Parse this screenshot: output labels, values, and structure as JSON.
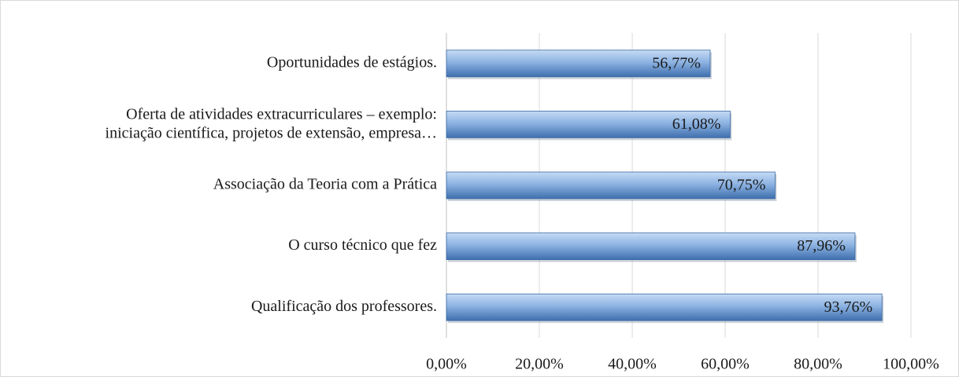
{
  "chart_data": {
    "type": "bar",
    "orientation": "horizontal",
    "categories": [
      "Oportunidades de estágios.",
      "Oferta de atividades extracurriculares – exemplo:\niniciação científica, projetos de extensão, empresa…",
      "Associação da Teoria com a Prática",
      "O curso técnico que fez",
      "Qualificação dos professores."
    ],
    "values": [
      56.77,
      61.08,
      70.75,
      87.96,
      93.76
    ],
    "value_labels": [
      "56,77%",
      "61,08%",
      "70,75%",
      "87,96%",
      "93,76%"
    ],
    "color": "#4f81bd",
    "xlim": [
      0,
      100
    ],
    "xticks": [
      {
        "value": 0,
        "label": "0,00%"
      },
      {
        "value": 20,
        "label": "20,00%"
      },
      {
        "value": 40,
        "label": "40,00%"
      },
      {
        "value": 60,
        "label": "60,00%"
      },
      {
        "value": 80,
        "label": "80,00%"
      },
      {
        "value": 100,
        "label": "100,00%"
      }
    ],
    "grid": true
  }
}
